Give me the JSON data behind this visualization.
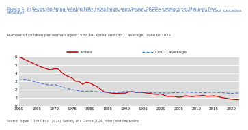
{
  "title": "Figure 1. In Korea declining total fertility rates have been below OECD average over the past four decades",
  "subtitle": "Number of children per woman aged 15 to 49, Korea and OECD average, 1960 to 2022",
  "source": "Source: Figure 1.1 in OECD (2024), Society at a Glance 2024, https://stat.link/xodlnc",
  "title_color": "#4472C4",
  "subtitle_color": "#404040",
  "source_color": "#404040",
  "background_color": "#ffffff",
  "plot_bg_color": "#DCDCDC",
  "xlim": [
    1960,
    2022
  ],
  "ylim": [
    0,
    6
  ],
  "yticks": [
    0,
    1,
    2,
    3,
    4,
    5,
    6
  ],
  "xticks": [
    1960,
    1965,
    1970,
    1975,
    1980,
    1985,
    1990,
    1995,
    2000,
    2005,
    2010,
    2015,
    2020
  ],
  "korea_color": "#C00000",
  "oecd_color": "#4472C4",
  "korea_years": [
    1960,
    1961,
    1962,
    1963,
    1964,
    1965,
    1966,
    1967,
    1968,
    1969,
    1970,
    1971,
    1972,
    1973,
    1974,
    1975,
    1976,
    1977,
    1978,
    1979,
    1980,
    1981,
    1982,
    1983,
    1984,
    1985,
    1986,
    1987,
    1988,
    1989,
    1990,
    1991,
    1992,
    1993,
    1994,
    1995,
    1996,
    1997,
    1998,
    1999,
    2000,
    2001,
    2002,
    2003,
    2004,
    2005,
    2006,
    2007,
    2008,
    2009,
    2010,
    2011,
    2012,
    2013,
    2014,
    2015,
    2016,
    2017,
    2018,
    2019,
    2020,
    2021,
    2022
  ],
  "korea_values": [
    6.0,
    5.8,
    5.6,
    5.4,
    5.2,
    5.0,
    4.8,
    4.65,
    4.5,
    4.4,
    4.53,
    4.54,
    4.12,
    3.8,
    3.6,
    3.43,
    3.0,
    2.99,
    2.64,
    2.9,
    2.82,
    2.57,
    2.39,
    2.06,
    1.74,
    1.66,
    1.58,
    1.53,
    1.55,
    1.57,
    1.57,
    1.71,
    1.76,
    1.65,
    1.67,
    1.65,
    1.58,
    1.54,
    1.45,
    1.42,
    1.47,
    1.31,
    1.17,
    1.19,
    1.16,
    1.08,
    1.12,
    1.25,
    1.19,
    1.15,
    1.23,
    1.24,
    1.3,
    1.19,
    1.21,
    1.24,
    1.17,
    1.05,
    0.98,
    0.92,
    0.84,
    0.81,
    0.78
  ],
  "oecd_years": [
    1960,
    1961,
    1962,
    1963,
    1964,
    1965,
    1966,
    1967,
    1968,
    1969,
    1970,
    1971,
    1972,
    1973,
    1974,
    1975,
    1976,
    1977,
    1978,
    1979,
    1980,
    1981,
    1982,
    1983,
    1984,
    1985,
    1986,
    1987,
    1988,
    1989,
    1990,
    1991,
    1992,
    1993,
    1994,
    1995,
    1996,
    1997,
    1998,
    1999,
    2000,
    2001,
    2002,
    2003,
    2004,
    2005,
    2006,
    2007,
    2008,
    2009,
    2010,
    2011,
    2012,
    2013,
    2014,
    2015,
    2016,
    2017,
    2018,
    2019,
    2020,
    2021,
    2022
  ],
  "oecd_values": [
    3.3,
    3.25,
    3.2,
    3.1,
    3.0,
    2.9,
    2.78,
    2.7,
    2.6,
    2.55,
    2.62,
    2.52,
    2.38,
    2.2,
    2.1,
    2.0,
    1.9,
    1.85,
    1.8,
    1.77,
    1.82,
    1.78,
    1.74,
    1.7,
    1.68,
    1.67,
    1.66,
    1.66,
    1.68,
    1.7,
    1.79,
    1.76,
    1.72,
    1.7,
    1.69,
    1.68,
    1.67,
    1.65,
    1.6,
    1.58,
    1.61,
    1.59,
    1.58,
    1.6,
    1.63,
    1.63,
    1.67,
    1.7,
    1.7,
    1.65,
    1.67,
    1.65,
    1.61,
    1.62,
    1.68,
    1.67,
    1.65,
    1.63,
    1.6,
    1.56,
    1.53,
    1.58,
    1.58
  ]
}
